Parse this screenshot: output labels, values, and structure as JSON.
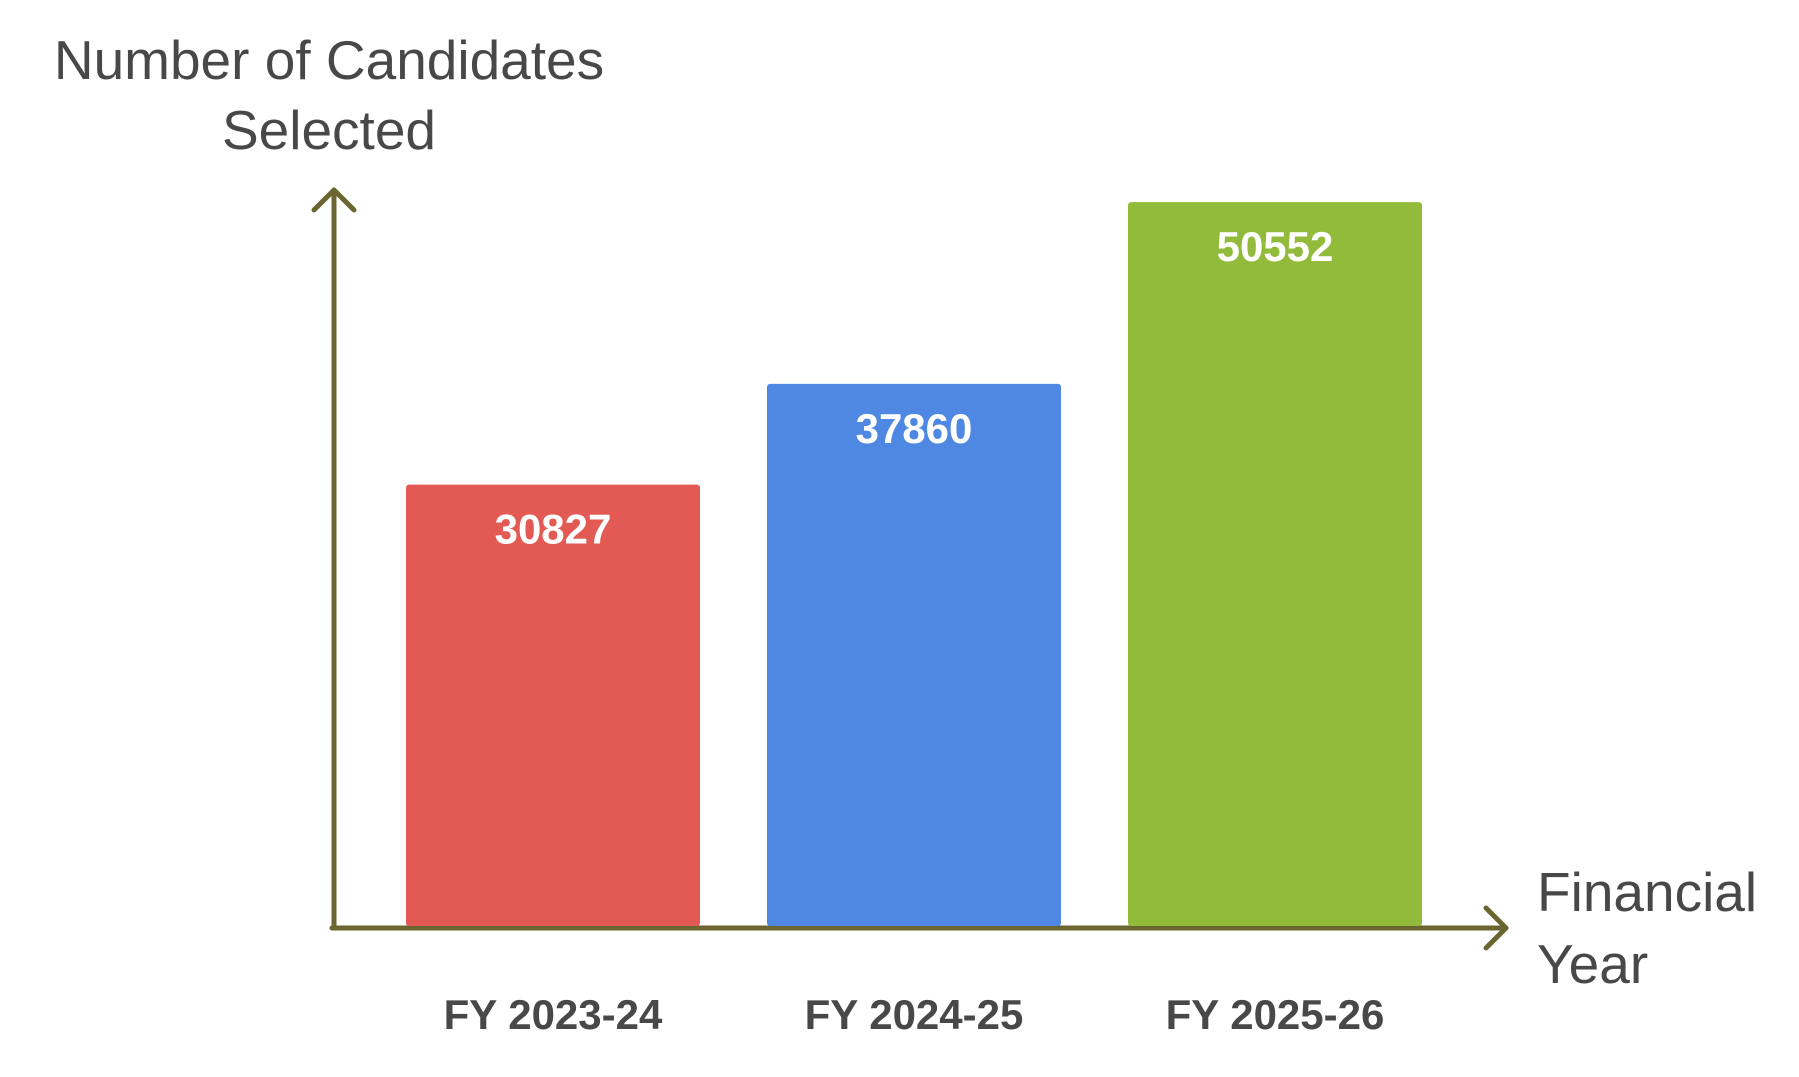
{
  "chart_data": {
    "type": "bar",
    "y_axis_title": "Number of Candidates Selected",
    "x_axis_title": "Financial Year",
    "categories": [
      "FY 2023-24",
      "FY 2024-25",
      "FY 2025-26"
    ],
    "values": [
      30827,
      37860,
      50552
    ],
    "colors": [
      "#e35a54",
      "#4e88e3",
      "#93bb3b"
    ],
    "ylim": [
      0,
      51400
    ]
  }
}
